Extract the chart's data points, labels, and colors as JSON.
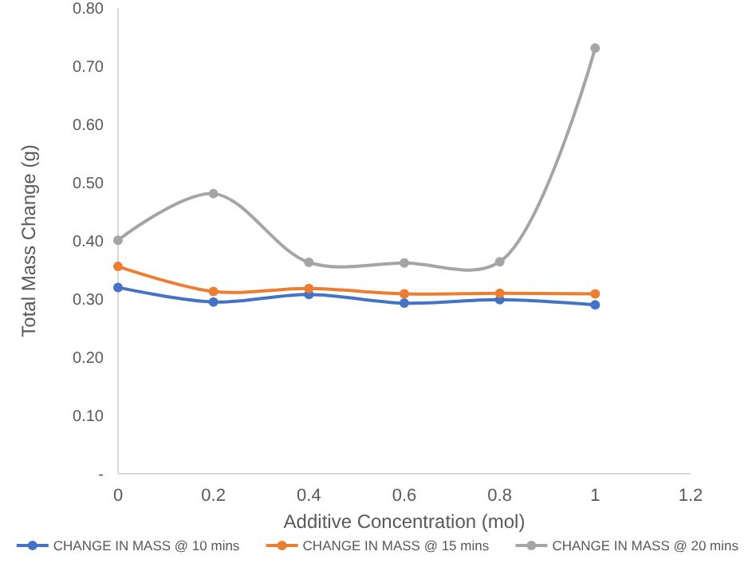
{
  "chart_data": {
    "type": "line",
    "xlabel": "Additive Concentration (mol)",
    "ylabel": "Total Mass Change (g)",
    "x": [
      0,
      0.2,
      0.4,
      0.6,
      0.8,
      1
    ],
    "series": [
      {
        "name": "CHANGE IN MASS @ 10 mins",
        "color": "#4472c4",
        "values": [
          0.32,
          0.295,
          0.308,
          0.293,
          0.299,
          0.29
        ]
      },
      {
        "name": "CHANGE IN MASS @ 15 mins",
        "color": "#ed7d31",
        "values": [
          0.356,
          0.313,
          0.318,
          0.309,
          0.31,
          0.309
        ]
      },
      {
        "name": "CHANGE IN MASS @ 20 mins",
        "color": "#a5a5a5",
        "values": [
          0.401,
          0.481,
          0.363,
          0.362,
          0.364,
          0.731
        ]
      }
    ],
    "xlim": [
      0,
      1.2
    ],
    "xticks": [
      0,
      0.2,
      0.4,
      0.6,
      0.8,
      1,
      1.2
    ],
    "ylim": [
      0,
      0.8
    ],
    "yticks": [
      {
        "value": 0,
        "label": "-"
      },
      {
        "value": 0.1,
        "label": "0.10"
      },
      {
        "value": 0.2,
        "label": "0.20"
      },
      {
        "value": 0.3,
        "label": "0.30"
      },
      {
        "value": 0.4,
        "label": "0.40"
      },
      {
        "value": 0.5,
        "label": "0.50"
      },
      {
        "value": 0.6,
        "label": "0.60"
      },
      {
        "value": 0.7,
        "label": "0.70"
      },
      {
        "value": 0.8,
        "label": "0.80"
      }
    ],
    "grid": false,
    "legend": "bottom",
    "marker": "circle",
    "line_style": "solid"
  }
}
